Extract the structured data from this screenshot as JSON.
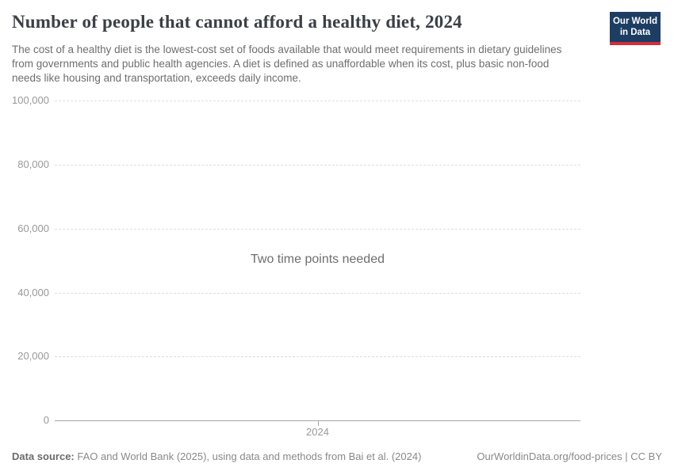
{
  "header": {
    "title": "Number of people that cannot afford a healthy diet, 2024",
    "subtitle": "The cost of a healthy diet is the lowest-cost set of foods available that would meet requirements in dietary guidelines from governments and public health agencies. A diet is defined as unaffordable when its cost, plus basic non-food needs like housing and transportation, exceeds daily income.",
    "logo_line1": "Our World",
    "logo_line2": "in Data"
  },
  "chart_data": {
    "type": "line",
    "title": "Number of people that cannot afford a healthy diet, 2024",
    "series": [],
    "empty_state_message": "Two time points needed",
    "x_tick_labels": [
      "2024"
    ],
    "y_tick_labels": [
      "0",
      "20,000",
      "40,000",
      "60,000",
      "80,000",
      "100,000"
    ],
    "ylim": [
      0,
      100000
    ],
    "xlabel": "",
    "ylabel": "",
    "grid": "horizontal-dashed",
    "legend": "none",
    "colors": {
      "gridline": "#dedede",
      "axis_line": "#a6a6a6",
      "tick_label": "#999999",
      "logo_bg": "#1d3d63",
      "logo_stripe": "#d12d3e"
    }
  },
  "footer": {
    "datasource_label": "Data source:",
    "datasource_text": " FAO and World Bank (2025), using data and methods from Bai et al. (2024)",
    "license_text": "OurWorldinData.org/food-prices | CC BY"
  }
}
